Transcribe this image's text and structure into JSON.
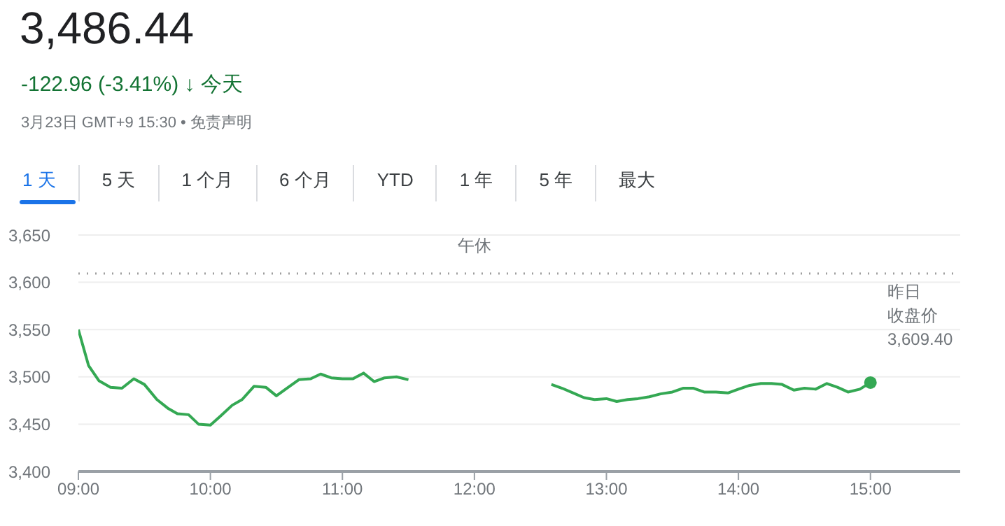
{
  "chart_data": {
    "type": "line",
    "title": "3,486.44",
    "subtitle": "-122.96 (-3.41%) ↓ 今天",
    "annotations": [
      "3月23日 GMT+9 15:30 • 免责声明",
      "1 天",
      "5 天",
      "1 个月",
      "6 个月",
      "YTD",
      "1 年",
      "5 年",
      "最大",
      "午休"
    ],
    "series": [
      {
        "color": "#34a853",
        "x": [
          9.0,
          9.077,
          9.155,
          9.243,
          9.33,
          9.42,
          9.5,
          9.595,
          9.676,
          9.75,
          9.835,
          9.91,
          10.0,
          10.08,
          10.165,
          10.24,
          10.33,
          10.42,
          10.5,
          10.59,
          10.67,
          10.76,
          10.835,
          10.915,
          11.0,
          11.08,
          11.16,
          11.24,
          11.32,
          11.41,
          11.5,
          12.0,
          12.583,
          12.664,
          12.749,
          12.83,
          12.91,
          13.0,
          13.078,
          13.16,
          13.24,
          13.325,
          13.41,
          13.5,
          13.58,
          13.66,
          13.74,
          13.83,
          13.92,
          14.0,
          14.085,
          14.17,
          14.25,
          14.33,
          14.42,
          14.5,
          14.585,
          14.67,
          14.75,
          14.83,
          14.92,
          15.0
        ],
        "values": [
          3550,
          3512,
          3496,
          3489,
          3488,
          3498,
          3492,
          3476,
          3467,
          3461,
          3460,
          3450,
          3449,
          3459,
          3470,
          3476,
          3490,
          3489,
          3480,
          3489,
          3497,
          3498,
          3503,
          3499,
          3498,
          3498,
          3504,
          3495,
          3499,
          3500,
          3497,
          null,
          3492,
          3488,
          3483,
          3478,
          3476,
          3477,
          3474,
          3476,
          3477,
          3479,
          3482,
          3484,
          3488,
          3488,
          3484,
          3484,
          3483,
          3487,
          3491,
          3493,
          3493,
          3492,
          3486,
          3488,
          3487,
          3493,
          3489,
          3484,
          3487,
          3494
        ]
      },
      {
        "type": "scatter",
        "color": "#34a853",
        "marker": "circle",
        "x": [
          15.0
        ],
        "values": [
          3494
        ]
      }
    ],
    "xlim": [
      9,
      15.68
    ],
    "xticks": [
      {
        "value": 9,
        "label": "09:00"
      },
      {
        "value": 10,
        "label": "10:00"
      },
      {
        "value": 11,
        "label": "11:00"
      },
      {
        "value": 12,
        "label": "12:00"
      },
      {
        "value": 13,
        "label": "13:00"
      },
      {
        "value": 14,
        "label": "14:00"
      },
      {
        "value": 15,
        "label": "15:00"
      }
    ],
    "ylim": [
      3400,
      3650
    ],
    "yticks": [
      {
        "value": 3400,
        "label": "3,400"
      },
      {
        "value": 3450,
        "label": "3,450"
      },
      {
        "value": 3500,
        "label": "3,500"
      },
      {
        "value": 3550,
        "label": "3,550"
      },
      {
        "value": 3600,
        "label": "3,600"
      },
      {
        "value": 3650,
        "label": "3,650"
      }
    ],
    "grid": "y",
    "marker": "none",
    "ref_lines": [
      {
        "axis": "y",
        "value": 3609.4,
        "label": "昨日收盘价\n3,609.40",
        "color": "#9e9e9e",
        "line_style": "dotted"
      }
    ]
  }
}
